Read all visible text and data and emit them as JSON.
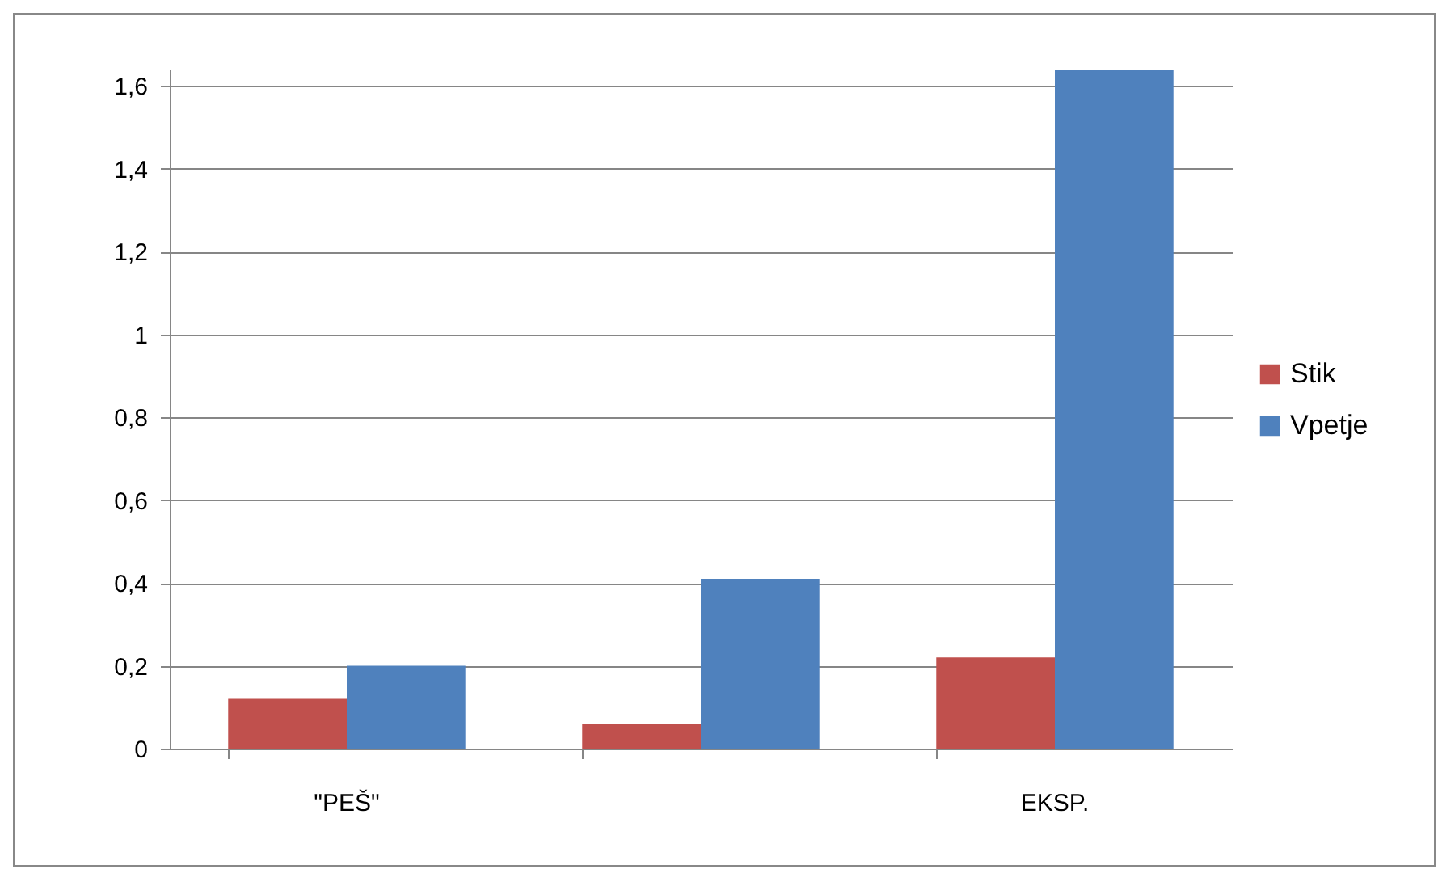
{
  "chart_data": {
    "type": "bar",
    "categories": [
      "\"PEŠ\"",
      null,
      "EKSP."
    ],
    "series": [
      {
        "name": "Stik",
        "color": "#c0504d",
        "values": [
          0.12,
          0.06,
          0.22
        ]
      },
      {
        "name": "Vpetje",
        "color": "#4f81bd",
        "values": [
          0.2,
          0.41,
          1.64
        ]
      }
    ],
    "ylim": [
      0,
      1.64
    ],
    "yticks": [
      0,
      {
        "value": 0.2,
        "label": "0,2"
      },
      {
        "value": 0.4,
        "label": "0,4"
      },
      {
        "value": 0.6,
        "label": "0,6"
      },
      {
        "value": 0.8,
        "label": "0,8"
      },
      1,
      {
        "value": 1.2,
        "label": "1,2"
      },
      {
        "value": 1.4,
        "label": "1,4"
      },
      {
        "value": 1.6,
        "label": "1,6"
      }
    ],
    "grid": "y",
    "legend": "right"
  }
}
